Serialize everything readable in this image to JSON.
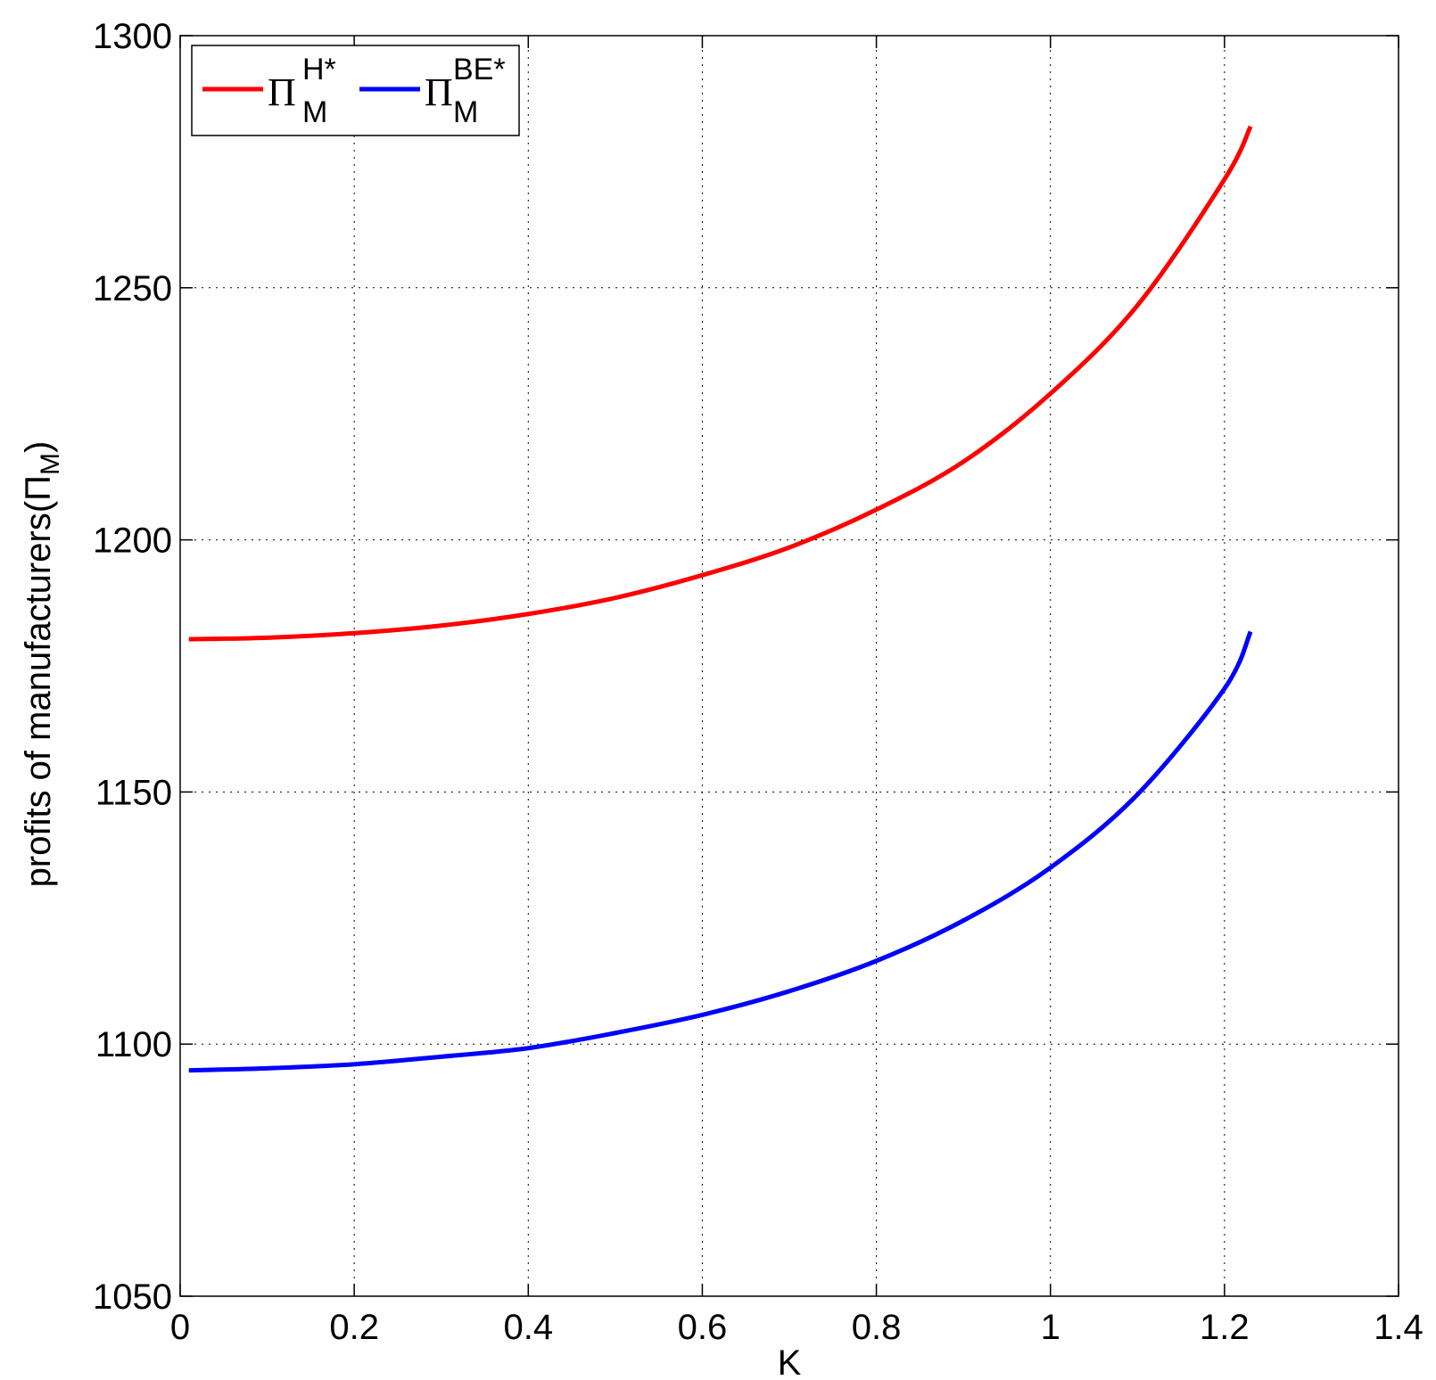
{
  "chart_data": {
    "type": "line",
    "xlabel": "K",
    "ylabel": "profits of manufacturers(",
    "ylabel_symbol": "Π",
    "ylabel_sub": "M",
    "ylabel_close": ")",
    "xlim": [
      0,
      1.4
    ],
    "ylim": [
      1050,
      1300
    ],
    "xticks": [
      0,
      0.2,
      0.4,
      0.6,
      0.8,
      1,
      1.2,
      1.4
    ],
    "yticks": [
      1050,
      1100,
      1150,
      1200,
      1250,
      1300
    ],
    "xtick_labels": [
      "0",
      "0.2",
      "0.4",
      "0.6",
      "0.8",
      "1",
      "1.2",
      "1.4"
    ],
    "ytick_labels": [
      "1050",
      "1100",
      "1150",
      "1200",
      "1250",
      "1300"
    ],
    "grid": true,
    "legend_position": "top-left",
    "series": [
      {
        "name_symbol": "Π",
        "name_sub": "M",
        "name_sup": "H*",
        "color": "#ff0000",
        "x": [
          0.01,
          0.1,
          0.2,
          0.3,
          0.4,
          0.5,
          0.6,
          0.7,
          0.8,
          0.9,
          1.0,
          1.1,
          1.2,
          1.23
        ],
        "y": [
          1180.3,
          1180.6,
          1181.5,
          1183.0,
          1185.3,
          1188.5,
          1193.0,
          1198.5,
          1206.0,
          1215.5,
          1229.0,
          1246.5,
          1271.5,
          1282.0
        ]
      },
      {
        "name_symbol": "Π",
        "name_sub": "M",
        "name_sup": "BE*",
        "color": "#0000ff",
        "x": [
          0.01,
          0.1,
          0.2,
          0.3,
          0.4,
          0.5,
          0.6,
          0.7,
          0.8,
          0.9,
          1.0,
          1.1,
          1.2,
          1.23
        ],
        "y": [
          1094.8,
          1095.2,
          1096.0,
          1097.5,
          1099.2,
          1102.2,
          1105.8,
          1110.5,
          1116.5,
          1124.5,
          1135.0,
          1149.5,
          1170.5,
          1181.8
        ]
      }
    ]
  }
}
